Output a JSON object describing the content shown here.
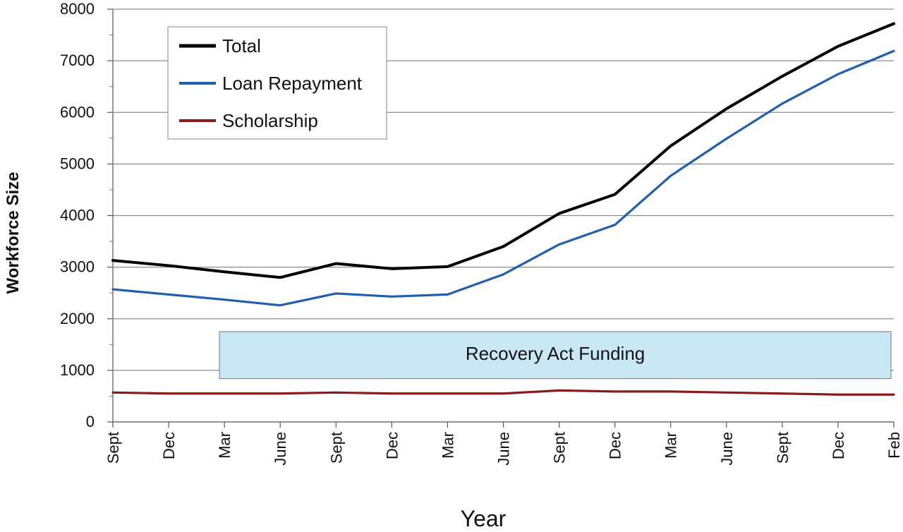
{
  "chart_data": {
    "type": "line",
    "categories": [
      "Sept",
      "Dec",
      "Mar",
      "June",
      "Sept",
      "Dec",
      "Mar",
      "June",
      "Sept",
      "Dec",
      "Mar",
      "June",
      "Sept",
      "Dec",
      "Feb"
    ],
    "xlabel": "Year",
    "ylabel": "Workforce Size",
    "ylim": [
      0,
      8000
    ],
    "yticks": [
      0,
      1000,
      2000,
      3000,
      4000,
      5000,
      6000,
      7000,
      8000
    ],
    "grid": true,
    "legend_position": "top-left",
    "series": [
      {
        "name": "Total",
        "color": "#000000",
        "values": [
          3130,
          3030,
          2910,
          2800,
          3070,
          2970,
          3010,
          3400,
          4040,
          4410,
          5350,
          6070,
          6700,
          7280,
          7720
        ]
      },
      {
        "name": "Loan Repayment",
        "color": "#1f5fae",
        "values": [
          2570,
          2470,
          2370,
          2260,
          2490,
          2430,
          2470,
          2860,
          3440,
          3820,
          4770,
          5490,
          6170,
          6740,
          7190
        ]
      },
      {
        "name": "Scholarship",
        "color": "#8b1a1a",
        "values": [
          570,
          550,
          550,
          550,
          570,
          550,
          550,
          550,
          610,
          590,
          590,
          570,
          550,
          530,
          530
        ]
      }
    ],
    "annotation": {
      "text": "Recovery Act Funding",
      "x_start": "Mar",
      "x_end": "Feb",
      "y_range": [
        840,
        1750
      ],
      "fill": "#c8e8f5",
      "border": "#8a8a8a"
    }
  }
}
